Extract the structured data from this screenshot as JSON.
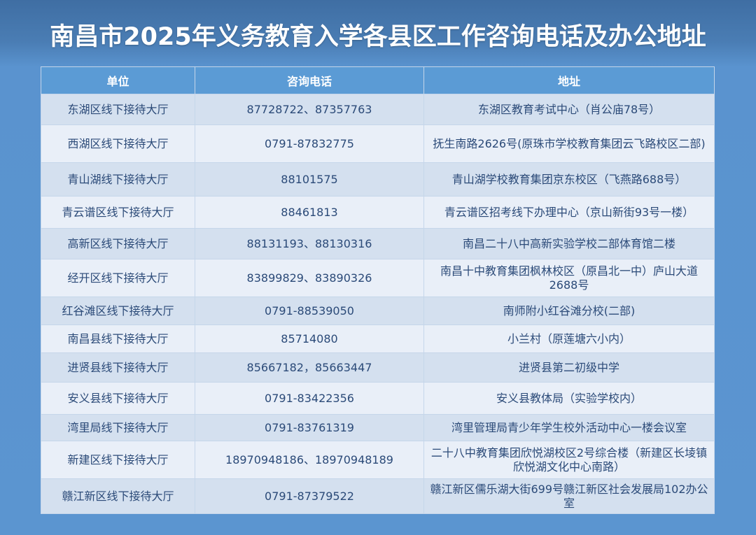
{
  "title": "南昌市2025年义务教育入学各县区工作咨询电话及办公地址",
  "colors": {
    "header": "#5b9bd5",
    "background": "#5a93cf",
    "text": "#2b4a78"
  },
  "table": {
    "headers": [
      "单位",
      "咨询电话",
      "地址"
    ],
    "rows": [
      {
        "unit": "东湖区线下接待大厅",
        "phone": "87728722、87357763",
        "address": "东湖区教育考试中心（肖公庙78号）"
      },
      {
        "unit": "西湖区线下接待大厅",
        "phone": "0791-87832775",
        "address": "抚生南路2626号(原珠市学校教育集团云飞路校区二部)"
      },
      {
        "unit": "青山湖线下接待大厅",
        "phone": "88101575",
        "address": "青山湖学校教育集团京东校区（飞燕路688号）"
      },
      {
        "unit": "青云谱区线下接待大厅",
        "phone": "88461813",
        "address": "青云谱区招考线下办理中心（京山新街93号一楼）"
      },
      {
        "unit": "高新区线下接待大厅",
        "phone": "88131193、88130316",
        "address": "南昌二十八中高新实验学校二部体育馆二楼"
      },
      {
        "unit": "经开区线下接待大厅",
        "phone": "83899829、83890326",
        "address": "南昌十中教育集团枫林校区（原昌北一中）庐山大道2688号"
      },
      {
        "unit": "红谷滩区线下接待大厅",
        "phone": "0791-88539050",
        "address": "南师附小红谷滩分校(二部)"
      },
      {
        "unit": "南昌县线下接待大厅",
        "phone": "85714080",
        "address": "小兰村（原莲塘六小内）"
      },
      {
        "unit": "进贤县线下接待大厅",
        "phone": "85667182，85663447",
        "address": "进贤县第二初级中学"
      },
      {
        "unit": "安义县线下接待大厅",
        "phone": "0791-83422356",
        "address": "安义县教体局（实验学校内）"
      },
      {
        "unit": "湾里局线下接待大厅",
        "phone": "0791-83761319",
        "address": "湾里管理局青少年学生校外活动中心一楼会议室"
      },
      {
        "unit": "新建区线下接待大厅",
        "phone": "18970948186、18970948189",
        "address": "二十八中教育集团欣悦湖校区2号综合楼（新建区长堎镇欣悦湖文化中心南路）"
      },
      {
        "unit": "赣江新区线下接待大厅",
        "phone": "0791-87379522",
        "address": "赣江新区儒乐湖大街699号赣江新区社会发展局102办公室"
      }
    ]
  }
}
